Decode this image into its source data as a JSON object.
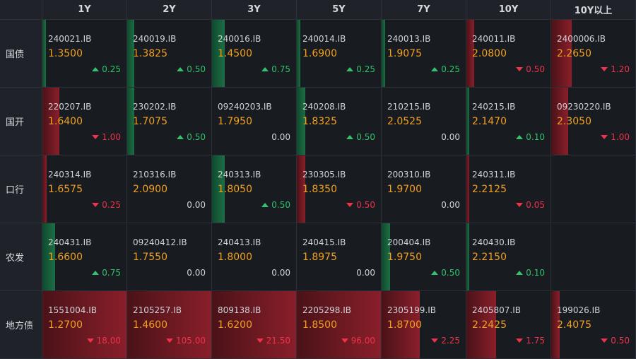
{
  "headers": [
    "1Y",
    "2Y",
    "3Y",
    "5Y",
    "7Y",
    "10Y",
    "10Y以上"
  ],
  "rows": [
    {
      "label": "国债",
      "cells": [
        {
          "code": "240021.IB",
          "yield": "1.3500",
          "change": "0.25",
          "dir": "up",
          "bar": 0.04
        },
        {
          "code": "240019.IB",
          "yield": "1.3825",
          "change": "0.50",
          "dir": "up",
          "bar": 0.08
        },
        {
          "code": "240016.IB",
          "yield": "1.4500",
          "change": "0.75",
          "dir": "up",
          "bar": 0.15
        },
        {
          "code": "240014.IB",
          "yield": "1.6900",
          "change": "0.25",
          "dir": "up",
          "bar": 0.04
        },
        {
          "code": "240013.IB",
          "yield": "1.9075",
          "change": "0.25",
          "dir": "up",
          "bar": 0.04
        },
        {
          "code": "240011.IB",
          "yield": "2.0800",
          "change": "0.50",
          "dir": "down",
          "bar": 0.09
        },
        {
          "code": "2400006.IB",
          "yield": "2.2650",
          "change": "1.20",
          "dir": "down",
          "bar": 0.24
        }
      ]
    },
    {
      "label": "国开",
      "cells": [
        {
          "code": "220207.IB",
          "yield": "1.6400",
          "change": "1.00",
          "dir": "down",
          "bar": 0.2
        },
        {
          "code": "230202.IB",
          "yield": "1.7075",
          "change": "0.50",
          "dir": "up",
          "bar": 0.08
        },
        {
          "code": "09240203.IB",
          "yield": "1.7950",
          "change": "0.00",
          "dir": "flat",
          "bar": 0
        },
        {
          "code": "240208.IB",
          "yield": "1.8325",
          "change": "0.50",
          "dir": "up",
          "bar": 0.1
        },
        {
          "code": "210215.IB",
          "yield": "2.0525",
          "change": "0.00",
          "dir": "flat",
          "bar": 0
        },
        {
          "code": "240215.IB",
          "yield": "2.1470",
          "change": "0.10",
          "dir": "up",
          "bar": 0.02
        },
        {
          "code": "09230220.IB",
          "yield": "2.3050",
          "change": "1.00",
          "dir": "down",
          "bar": 0.2
        }
      ]
    },
    {
      "label": "口行",
      "cells": [
        {
          "code": "240314.IB",
          "yield": "1.6575",
          "change": "0.25",
          "dir": "down",
          "bar": 0.05
        },
        {
          "code": "210316.IB",
          "yield": "2.0900",
          "change": "0.00",
          "dir": "flat",
          "bar": 0
        },
        {
          "code": "240313.IB",
          "yield": "1.8050",
          "change": "0.50",
          "dir": "up",
          "bar": 0.15
        },
        {
          "code": "230305.IB",
          "yield": "1.8350",
          "change": "0.50",
          "dir": "down",
          "bar": 0.1
        },
        {
          "code": "200310.IB",
          "yield": "1.9700",
          "change": "0.00",
          "dir": "flat",
          "bar": 0
        },
        {
          "code": "240311.IB",
          "yield": "2.2125",
          "change": "0.05",
          "dir": "down",
          "bar": 0.01
        },
        null
      ]
    },
    {
      "label": "农发",
      "cells": [
        {
          "code": "240431.IB",
          "yield": "1.6600",
          "change": "0.75",
          "dir": "up",
          "bar": 0.15
        },
        {
          "code": "09240412.IB",
          "yield": "1.7550",
          "change": "0.00",
          "dir": "flat",
          "bar": 0
        },
        {
          "code": "240413.IB",
          "yield": "1.8000",
          "change": "0.00",
          "dir": "flat",
          "bar": 0
        },
        {
          "code": "240415.IB",
          "yield": "1.8975",
          "change": "0.00",
          "dir": "flat",
          "bar": 0
        },
        {
          "code": "200404.IB",
          "yield": "1.9750",
          "change": "0.50",
          "dir": "up",
          "bar": 0.1
        },
        {
          "code": "240430.IB",
          "yield": "2.2150",
          "change": "0.10",
          "dir": "up",
          "bar": 0.02
        },
        null
      ]
    },
    {
      "label": "地方债",
      "cells": [
        {
          "code": "1551004.IB",
          "yield": "1.2700",
          "change": "18.00",
          "dir": "down",
          "bar": 1.0
        },
        {
          "code": "2105257.IB",
          "yield": "1.4600",
          "change": "105.00",
          "dir": "down",
          "bar": 1.0
        },
        {
          "code": "809138.IB",
          "yield": "1.6200",
          "change": "21.50",
          "dir": "down",
          "bar": 1.0
        },
        {
          "code": "2205298.IB",
          "yield": "1.8500",
          "change": "96.00",
          "dir": "down",
          "bar": 1.0
        },
        {
          "code": "2305199.IB",
          "yield": "1.8700",
          "change": "2.25",
          "dir": "down",
          "bar": 0.45
        },
        {
          "code": "2405807.IB",
          "yield": "2.2425",
          "change": "1.75",
          "dir": "down",
          "bar": 0.35
        },
        {
          "code": "199026.IB",
          "yield": "2.4075",
          "change": "0.50",
          "dir": "down",
          "bar": 0.1
        }
      ]
    }
  ],
  "colors": {
    "up": "#2fc36e",
    "down": "#f0324b",
    "yield": "#f0a020"
  }
}
